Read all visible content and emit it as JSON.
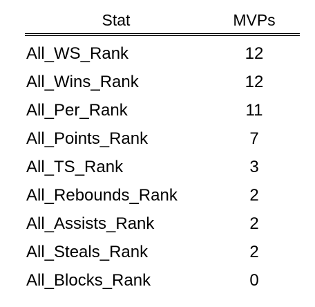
{
  "chart_data": {
    "type": "table",
    "columns": [
      "Stat",
      "MVPs"
    ],
    "rows": [
      {
        "stat": "All_WS_Rank",
        "mvps": "12"
      },
      {
        "stat": "All_Wins_Rank",
        "mvps": "12"
      },
      {
        "stat": "All_Per_Rank",
        "mvps": "11"
      },
      {
        "stat": "All_Points_Rank",
        "mvps": "7"
      },
      {
        "stat": "All_TS_Rank",
        "mvps": "3"
      },
      {
        "stat": "All_Rebounds_Rank",
        "mvps": "2"
      },
      {
        "stat": "All_Assists_Rank",
        "mvps": "2"
      },
      {
        "stat": "All_Steals_Rank",
        "mvps": "2"
      },
      {
        "stat": "All_Blocks_Rank",
        "mvps": "0"
      }
    ]
  }
}
